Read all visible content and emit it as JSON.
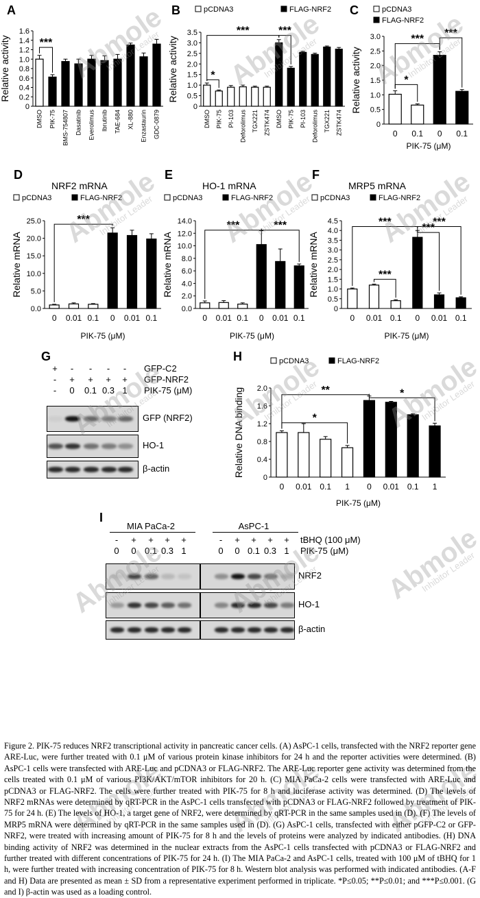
{
  "figure": {
    "caption": "Figure 2. PIK-75 reduces NRF2 transcriptional activity in pancreatic cancer cells. (A) AsPC-1 cells, transfected with the NRF2 reporter gene ARE-Luc, were further treated with 0.1 μM of various protein kinase inhibitors for 24 h and the reporter activities were determined. (B) AsPC-1 cells were transfected with ARE-Luc and pCDNA3 or FLAG-NRF2. The ARE-Luc reporter gene activity was determined from the cells treated with 0.1 μM of various PI3K/AKT/mTOR inhibitors for 20 h. (C) MIA PaCa-2 cells were transfected with ARE-Luc and pCDNA3 or FLAG-NRF2. The cells were further treated with PIK-75 for 8 h and luciferase activity was determined. (D) The levels of NRF2 mRNAs were determined by qRT-PCR in the AsPC-1 cells transfected with pCDNA3 or FLAG-NRF2 followed by treatment of PIK-75 for 24 h. (E) The levels of HO-1, a target gene of NRF2, were determined by qRT-PCR in the same samples used in (D). (F) The levels of MRP5 mRNA were determined by qRT-PCR in the same samples used in (D). (G) AsPC-1 cells, transfected with either pGFP-C2 or GFP-NRF2, were treated with increasing amount of PIK-75 for 8 h and the levels of proteins were analyzed by indicated antibodies. (H) DNA binding activity of NRF2 was determined in the nuclear extracts from the AsPC-1 cells transfected with pCDNA3 or FLAG-NRF2 and further treated with different concentrations of PIK-75 for 24 h. (I) The MIA PaCa-2 and AsPC-1 cells, treated with 100 μM of tBHQ for 1 h, were further treated with increasing concentration of PIK-75 for 8 h. Western blot analysis was performed with indicated antibodies. (A-F and H) Data are presented as mean ± SD from a representative experiment performed in triplicate. *P≤0.05; **P≤0.01; and ***P≤0.001. (G and I) β-actin was used as a loading control.",
    "watermark": {
      "brand": "Abmole",
      "tagline": "Inhibitor Leader"
    }
  },
  "chart_data": [
    {
      "panel": "A",
      "type": "bar",
      "categories": [
        "DMSO",
        "PIK-75",
        "BMS-754807",
        "Dasatinib",
        "Everolimus",
        "Ibrutinib",
        "TAE-684",
        "XL-880",
        "Enzastaurin",
        "GDC-0879"
      ],
      "values": [
        1.0,
        0.62,
        0.95,
        0.9,
        1.0,
        0.97,
        1.0,
        1.3,
        1.05,
        1.32
      ],
      "errors": [
        0.08,
        0.05,
        0.05,
        0.1,
        0.08,
        0.1,
        0.1,
        0.04,
        0.08,
        0.1
      ],
      "ylabel": "Relative activity",
      "ylim": [
        0,
        1.6
      ],
      "yticks": [
        "0",
        "0.2",
        "0.4",
        "0.6",
        "0.8",
        "1.0",
        "1.2",
        "1.4",
        "1.6"
      ],
      "significance": [
        {
          "from": "DMSO",
          "to": "PIK-75",
          "label": "***"
        }
      ]
    },
    {
      "panel": "B",
      "type": "bar",
      "legend": [
        "pCDNA3",
        "FLAG-NRF2"
      ],
      "categories": [
        "DMSO",
        "PIK-75",
        "PI-103",
        "Deforolimus",
        "TGX221",
        "ZSTK474",
        "DMSO",
        "PIK-75",
        "PI-103",
        "Deforolimus",
        "TGX221",
        "ZSTK474"
      ],
      "group": [
        0,
        0,
        0,
        0,
        0,
        0,
        1,
        1,
        1,
        1,
        1,
        1
      ],
      "values": [
        1.0,
        0.72,
        0.9,
        0.92,
        0.9,
        0.9,
        3.0,
        1.8,
        2.55,
        2.45,
        2.8,
        2.7
      ],
      "errors": [
        0.1,
        0.05,
        0.08,
        0.08,
        0.05,
        0.05,
        0.15,
        0.08,
        0.05,
        0.06,
        0.05,
        0.08
      ],
      "ylabel": "Relative activity",
      "ylim": [
        0,
        3.5
      ],
      "yticks": [
        "0",
        "0.5",
        "1.0",
        "1.5",
        "2.0",
        "2.5",
        "3.0",
        "3.5"
      ],
      "significance": [
        {
          "label": "*"
        },
        {
          "label": "***"
        },
        {
          "label": "***"
        }
      ]
    },
    {
      "panel": "C",
      "type": "bar",
      "legend": [
        "pCDNA3",
        "FLAG-NRF2"
      ],
      "categories": [
        "0",
        "0.1",
        "0",
        "0.1"
      ],
      "group": [
        0,
        0,
        1,
        1
      ],
      "values": [
        1.02,
        0.65,
        2.35,
        1.12
      ],
      "errors": [
        0.12,
        0.04,
        0.12,
        0.06
      ],
      "ylabel": "Relative activity",
      "xlabel": "PIK-75 (μM)",
      "ylim": [
        0,
        3.0
      ],
      "yticks": [
        "0",
        "0.5",
        "1.0",
        "1.5",
        "2.0",
        "2.5",
        "3.0"
      ],
      "significance": [
        {
          "label": "*"
        },
        {
          "label": "***"
        },
        {
          "label": "***"
        }
      ]
    },
    {
      "panel": "D",
      "type": "bar",
      "title": "NRF2 mRNA",
      "legend": [
        "pCDNA3",
        "FLAG-NRF2"
      ],
      "categories": [
        "0",
        "0.01",
        "0.1",
        "0",
        "0.01",
        "0.1"
      ],
      "group": [
        0,
        0,
        0,
        1,
        1,
        1
      ],
      "values": [
        1.0,
        1.3,
        1.2,
        21.5,
        20.8,
        19.8
      ],
      "errors": [
        0.2,
        0.3,
        0.2,
        1.5,
        1.5,
        1.5
      ],
      "ylabel": "Relative mRNA",
      "xlabel": "PIK-75 (μM)",
      "ylim": [
        0,
        25
      ],
      "yticks": [
        "0.0",
        "5.0",
        "10.0",
        "15.0",
        "20.0",
        "25.0"
      ],
      "significance": [
        {
          "label": "***"
        }
      ]
    },
    {
      "panel": "E",
      "type": "bar",
      "title": "HO-1 mRNA",
      "legend": [
        "pCDNA3",
        "FLAG-NRF2"
      ],
      "categories": [
        "0",
        "0.01",
        "0.1",
        "0",
        "0.01",
        "0.1"
      ],
      "group": [
        0,
        0,
        0,
        1,
        1,
        1
      ],
      "values": [
        0.9,
        0.95,
        0.7,
        10.2,
        7.5,
        6.8
      ],
      "errors": [
        0.3,
        0.3,
        0.2,
        2.2,
        2.0,
        0.3
      ],
      "ylabel": "Relative mRNA",
      "xlabel": "PIK-75 (μM)",
      "ylim": [
        0,
        14
      ],
      "yticks": [
        "0.0",
        "2.0",
        "4.0",
        "6.0",
        "8.0",
        "10.0",
        "12.0",
        "14.0"
      ],
      "significance": [
        {
          "label": "***"
        },
        {
          "label": "***"
        }
      ]
    },
    {
      "panel": "F",
      "type": "bar",
      "title": "MRP5 mRNA",
      "legend": [
        "pCDNA3",
        "FLAG-NRF2"
      ],
      "categories": [
        "0",
        "0.01",
        "0.1",
        "0",
        "0.01",
        "0.1"
      ],
      "group": [
        0,
        0,
        0,
        1,
        1,
        1
      ],
      "values": [
        1.0,
        1.2,
        0.4,
        3.65,
        0.7,
        0.55
      ],
      "errors": [
        0.05,
        0.05,
        0.05,
        0.35,
        0.1,
        0.05
      ],
      "ylabel": "Relative mRNA",
      "xlabel": "PIK-75 (μM)",
      "ylim": [
        0,
        4.5
      ],
      "yticks": [
        "0",
        "0.5",
        "1.0",
        "1.5",
        "2.0",
        "2.5",
        "3.0",
        "3.5",
        "4.0",
        "4.5"
      ],
      "significance": [
        {
          "label": "***"
        },
        {
          "label": "***"
        },
        {
          "label": "***"
        },
        {
          "label": "***"
        }
      ]
    },
    {
      "panel": "H",
      "type": "bar",
      "legend": [
        "pCDNA3",
        "FLAG-NRF2"
      ],
      "categories": [
        "0",
        "0.01",
        "0.1",
        "1",
        "0",
        "0.01",
        "0.1",
        "1"
      ],
      "group": [
        0,
        0,
        0,
        0,
        1,
        1,
        1,
        1
      ],
      "values": [
        1.0,
        1.0,
        0.85,
        0.66,
        1.72,
        1.68,
        1.4,
        1.15
      ],
      "errors": [
        0.04,
        0.2,
        0.06,
        0.05,
        0.1,
        0.02,
        0.02,
        0.06
      ],
      "ylabel": "Relative DNA binding",
      "xlabel": "PIK-75 (μM)",
      "ylim": [
        0,
        2.0
      ],
      "yticks": [
        "0",
        "0.4",
        "0.8",
        "1.2",
        "1.6",
        "2.0"
      ],
      "significance": [
        {
          "label": "*"
        },
        {
          "label": "**"
        },
        {
          "label": "*"
        }
      ]
    }
  ],
  "blot_G": {
    "rows": [
      {
        "label": "GFP-C2",
        "values": [
          "+",
          "-",
          "-",
          "-",
          "-"
        ]
      },
      {
        "label": "GFP-NRF2",
        "values": [
          "-",
          "+",
          "+",
          "+",
          "+"
        ]
      },
      {
        "label": "PIK-75 (μM)",
        "values": [
          "-",
          "0",
          "0.1",
          "0.3",
          "1"
        ]
      }
    ],
    "bands": [
      {
        "label": "GFP (NRF2)",
        "intensity": [
          0.05,
          0.95,
          0.55,
          0.45,
          0.55
        ]
      },
      {
        "label": "HO-1",
        "intensity": [
          0.65,
          0.8,
          0.5,
          0.45,
          0.35
        ]
      },
      {
        "label": "β-actin",
        "intensity": [
          0.85,
          0.85,
          0.85,
          0.85,
          0.85
        ]
      }
    ]
  },
  "blot_I": {
    "groups": [
      "MIA PaCa-2",
      "AsPC-1"
    ],
    "rows": [
      {
        "label": "tBHQ (100 μM)",
        "values": [
          "-",
          "+",
          "+",
          "+",
          "+",
          "-",
          "+",
          "+",
          "+",
          "+"
        ]
      },
      {
        "label": "PIK-75  (μM)",
        "values": [
          "0",
          "0",
          "0.1",
          "0.3",
          "1",
          "0",
          "0",
          "0.1",
          "0.3",
          "1"
        ]
      }
    ],
    "bands": [
      {
        "label": "NRF2",
        "intensity": [
          0.1,
          0.7,
          0.55,
          0.15,
          0.1,
          0.35,
          0.95,
          0.7,
          0.5,
          0.2
        ]
      },
      {
        "label": "HO-1",
        "intensity": [
          0.3,
          0.8,
          0.7,
          0.6,
          0.5,
          0.4,
          0.85,
          0.85,
          0.7,
          0.45
        ]
      },
      {
        "label": "β-actin",
        "intensity": [
          0.85,
          0.85,
          0.85,
          0.85,
          0.85,
          0.85,
          0.85,
          0.85,
          0.85,
          0.85
        ]
      }
    ]
  }
}
